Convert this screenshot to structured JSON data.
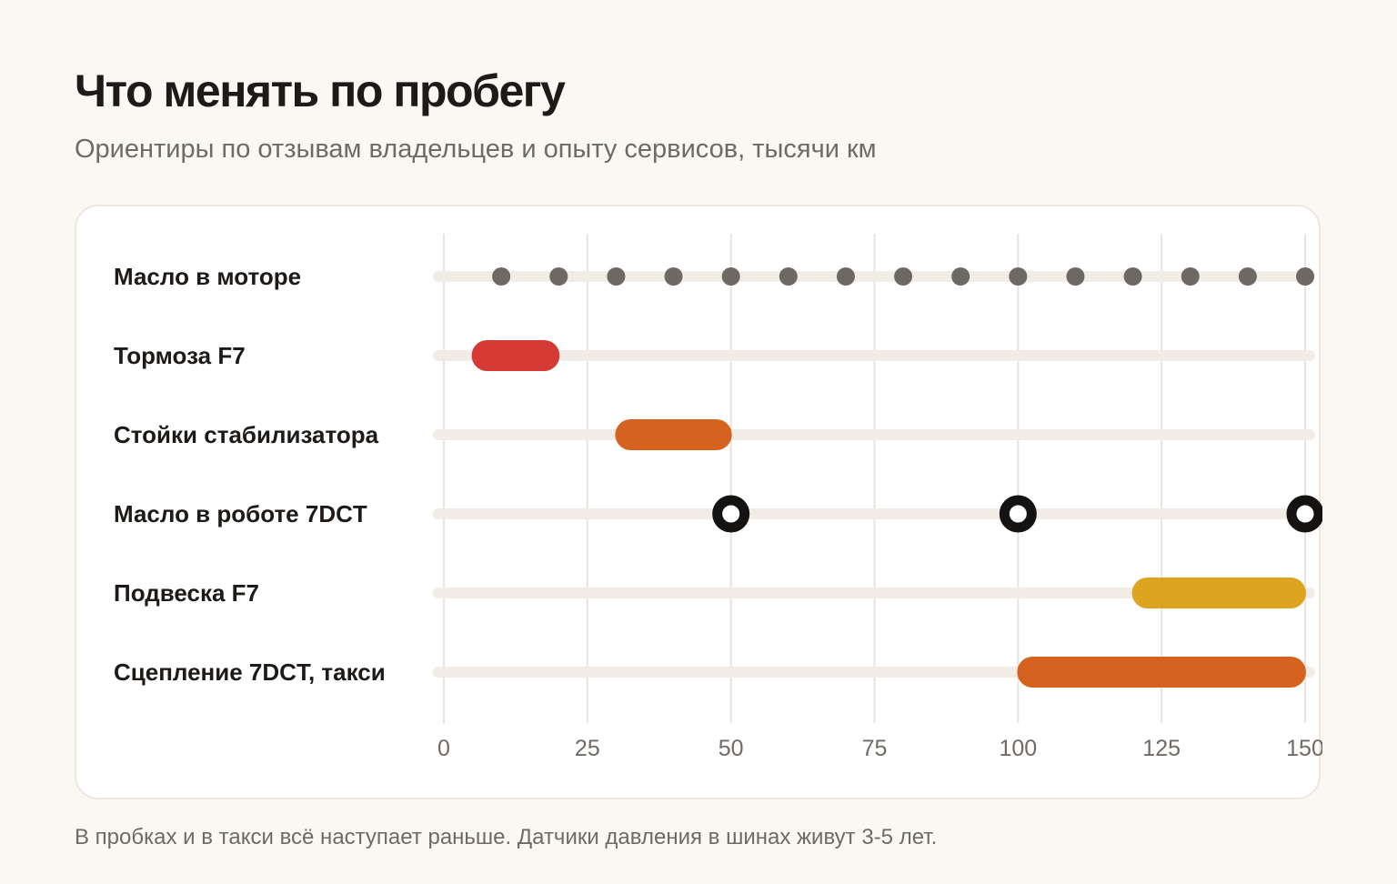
{
  "header": {
    "title": "Что менять по пробегу",
    "subtitle": "Ориентиры по отзывам владельцев и опыту сервисов, тысячи км"
  },
  "footer": {
    "note": "В пробках и в такси всё наступает раньше. Датчики давления в шинах живут 3-5 лет."
  },
  "chart_data": {
    "type": "range-timeline",
    "x_ticks": [
      0,
      25,
      50,
      75,
      100,
      125,
      150
    ],
    "xlim": [
      0,
      150
    ],
    "grid": true,
    "rows": [
      {
        "label": "Масло в моторе",
        "kind": "points",
        "style": "dot",
        "color": "#6e6862",
        "points": [
          10,
          20,
          30,
          40,
          50,
          60,
          70,
          80,
          90,
          100,
          110,
          120,
          130,
          140,
          150
        ]
      },
      {
        "label": "Тормоза F7",
        "kind": "range",
        "color": "#d63a35",
        "start": 5,
        "end": 20
      },
      {
        "label": "Стойки стабилизатора",
        "kind": "range",
        "color": "#d5631f",
        "start": 30,
        "end": 50
      },
      {
        "label": "Масло в роботе 7DCT",
        "kind": "points",
        "style": "ring",
        "color": "#151311",
        "points": [
          50,
          100,
          150
        ]
      },
      {
        "label": "Подвеска F7",
        "kind": "range",
        "color": "#dca41f",
        "start": 120,
        "end": 150
      },
      {
        "label": "Сцепление 7DCT, такси",
        "kind": "range",
        "color": "#d5631f",
        "start": 100,
        "end": 150
      }
    ],
    "colors": {
      "track": "#f1ece5",
      "grid": "#e8e3dc",
      "tick_text": "#706a64",
      "label_text": "#1d1a17"
    }
  }
}
